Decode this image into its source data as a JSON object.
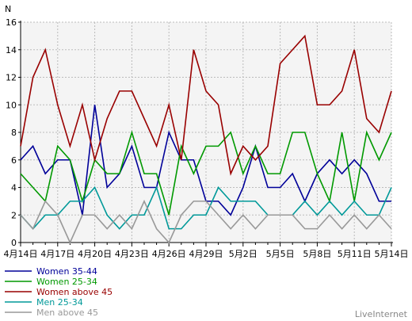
{
  "chart_data": {
    "type": "line",
    "title": "",
    "ylabel": "N",
    "xlabel": "",
    "ylim": [
      0,
      16
    ],
    "yticks": [
      0,
      2,
      4,
      6,
      8,
      10,
      12,
      14,
      16
    ],
    "grid": true,
    "legend_position": "bottom-left",
    "watermark": "LiveInternet",
    "x_tick_labels": [
      "4月14日",
      "4月17日",
      "4月20日",
      "4月23日",
      "4月26日",
      "4月29日",
      "5月2日",
      "5月5日",
      "5月8日",
      "5月11日",
      "5月14日"
    ],
    "x_tick_every": 3,
    "x_count": 31,
    "series": [
      {
        "name": "Women 35-44",
        "color": "#000099",
        "values": [
          6,
          7,
          5,
          6,
          6,
          2,
          10,
          4,
          5,
          7,
          4,
          4,
          8,
          6,
          6,
          3,
          3,
          2,
          4,
          7,
          4,
          4,
          5,
          3,
          5,
          6,
          5,
          6,
          5,
          3,
          3
        ]
      },
      {
        "name": "Women 25-34",
        "color": "#009900",
        "values": [
          5,
          4,
          3,
          7,
          6,
          3,
          6,
          5,
          5,
          8,
          5,
          5,
          2,
          7,
          5,
          7,
          7,
          8,
          5,
          7,
          5,
          5,
          8,
          8,
          5,
          3,
          8,
          3,
          8,
          6,
          8
        ]
      },
      {
        "name": "Women above 45",
        "color": "#990000",
        "values": [
          7,
          12,
          14,
          10,
          7,
          10,
          6,
          9,
          11,
          11,
          9,
          7,
          10,
          6,
          14,
          11,
          10,
          5,
          7,
          6,
          7,
          13,
          14,
          15,
          10,
          10,
          11,
          14,
          9,
          8,
          11
        ]
      },
      {
        "name": "Men 25-34",
        "color": "#009999",
        "values": [
          2,
          1,
          2,
          2,
          3,
          3,
          4,
          2,
          1,
          2,
          2,
          4,
          1,
          1,
          2,
          2,
          4,
          3,
          3,
          3,
          2,
          2,
          2,
          3,
          2,
          3,
          2,
          3,
          2,
          2,
          4
        ]
      },
      {
        "name": "Men above 45",
        "color": "#999999",
        "values": [
          2,
          1,
          3,
          2,
          0,
          2,
          2,
          1,
          2,
          1,
          3,
          1,
          0,
          2,
          3,
          3,
          2,
          1,
          2,
          1,
          2,
          2,
          2,
          1,
          1,
          2,
          1,
          2,
          1,
          2,
          1
        ]
      }
    ]
  }
}
